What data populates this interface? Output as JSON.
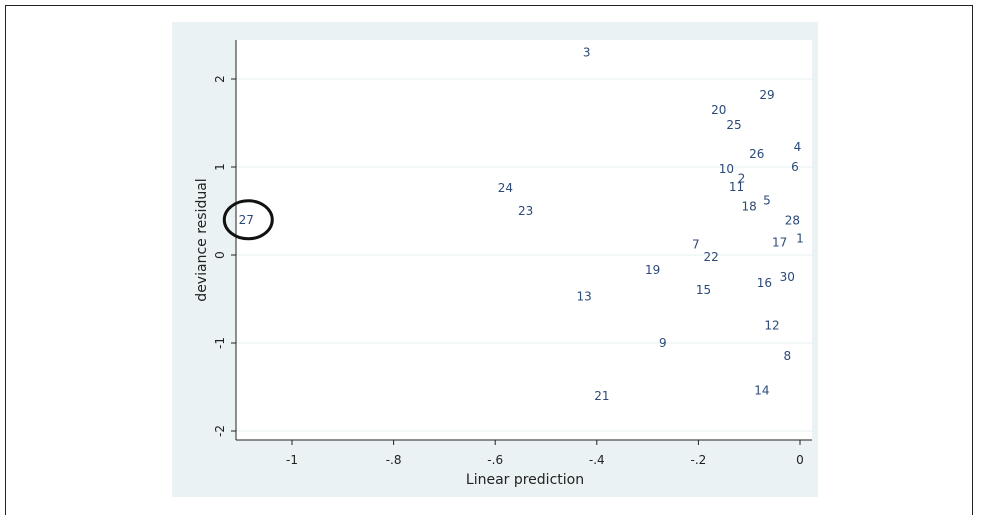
{
  "chart_data": {
    "type": "scatter",
    "xlabel": "Linear prediction",
    "ylabel": "deviance residual",
    "xlim": [
      -1.1,
      0.0
    ],
    "ylim": [
      -2.0,
      2.35
    ],
    "xticks": [
      -1,
      -0.8,
      -0.6,
      -0.4,
      -0.2,
      0
    ],
    "xtick_labels": [
      "-1",
      "-.8",
      "-.6",
      "-.4",
      "-.2",
      "0"
    ],
    "yticks": [
      -2,
      -1,
      0,
      1,
      2
    ],
    "ytick_labels": [
      "-2",
      "-1",
      "0",
      "1",
      "2"
    ],
    "grid": "horizontal",
    "marker": "label",
    "points": [
      {
        "label": "3",
        "x": -0.42,
        "y": 2.3
      },
      {
        "label": "29",
        "x": -0.065,
        "y": 1.82
      },
      {
        "label": "20",
        "x": -0.16,
        "y": 1.65
      },
      {
        "label": "25",
        "x": -0.13,
        "y": 1.48
      },
      {
        "label": "4",
        "x": -0.005,
        "y": 1.23
      },
      {
        "label": "26",
        "x": -0.085,
        "y": 1.15
      },
      {
        "label": "10",
        "x": -0.145,
        "y": 0.98
      },
      {
        "label": "6",
        "x": -0.01,
        "y": 1.0
      },
      {
        "label": "2",
        "x": -0.115,
        "y": 0.87
      },
      {
        "label": "24",
        "x": -0.58,
        "y": 0.76
      },
      {
        "label": "11",
        "x": -0.125,
        "y": 0.77
      },
      {
        "label": "5",
        "x": -0.065,
        "y": 0.62
      },
      {
        "label": "18",
        "x": -0.1,
        "y": 0.55
      },
      {
        "label": "23",
        "x": -0.54,
        "y": 0.5
      },
      {
        "label": "27",
        "x": -1.09,
        "y": 0.4
      },
      {
        "label": "28",
        "x": -0.015,
        "y": 0.39
      },
      {
        "label": "1",
        "x": 0.0,
        "y": 0.19
      },
      {
        "label": "7",
        "x": -0.205,
        "y": 0.12
      },
      {
        "label": "17",
        "x": -0.04,
        "y": 0.14
      },
      {
        "label": "22",
        "x": -0.175,
        "y": -0.02
      },
      {
        "label": "19",
        "x": -0.29,
        "y": -0.17
      },
      {
        "label": "30",
        "x": -0.025,
        "y": -0.25
      },
      {
        "label": "16",
        "x": -0.07,
        "y": -0.32
      },
      {
        "label": "15",
        "x": -0.19,
        "y": -0.4
      },
      {
        "label": "13",
        "x": -0.425,
        "y": -0.47
      },
      {
        "label": "12",
        "x": -0.055,
        "y": -0.8
      },
      {
        "label": "9",
        "x": -0.27,
        "y": -1.0
      },
      {
        "label": "8",
        "x": -0.025,
        "y": -1.15
      },
      {
        "label": "14",
        "x": -0.075,
        "y": -1.54
      },
      {
        "label": "21",
        "x": -0.39,
        "y": -1.6
      }
    ],
    "highlight": {
      "label": "27",
      "shape": "circle"
    }
  },
  "colors": {
    "outer_background": "#eaf2f3",
    "plot_background": "#ffffff",
    "marker_label": "#2c4a78",
    "highlight_stroke": "#111111",
    "grid": "#eaf2f3"
  }
}
